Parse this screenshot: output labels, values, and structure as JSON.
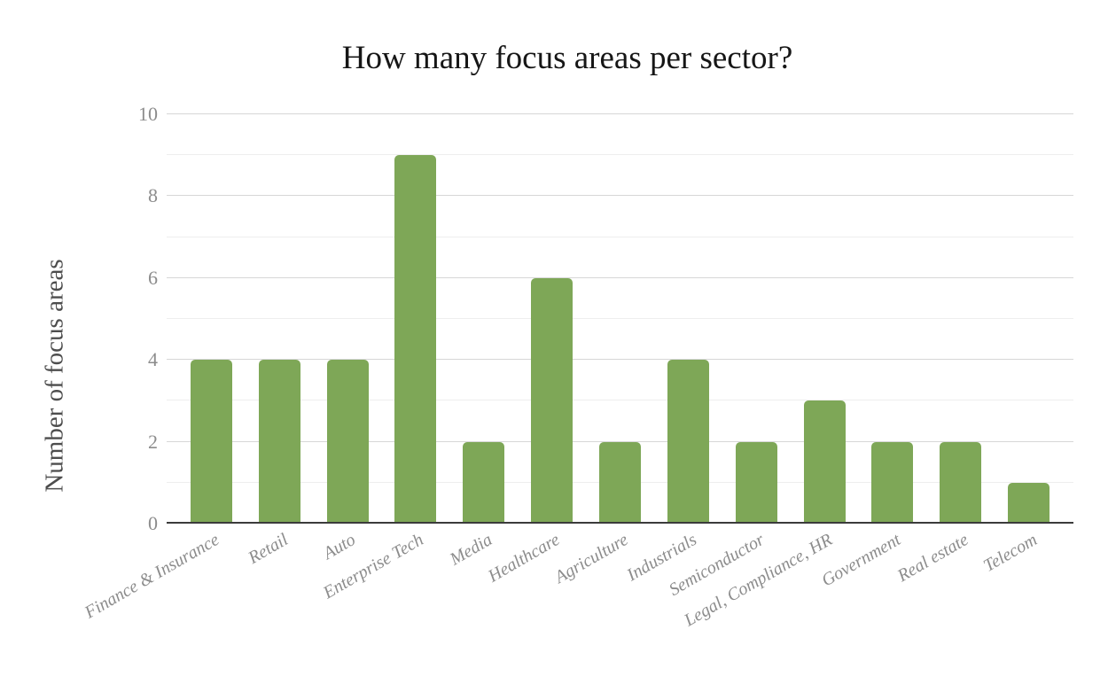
{
  "figure": {
    "title": "How many focus areas per sector?",
    "y_axis_title": "Number of focus areas"
  },
  "colors": {
    "bar_fill": "#7EA757",
    "title_text": "#161616",
    "y_axis_title_text": "#4d4d4d",
    "tick_label_text": "#8c8c8c",
    "gridline_major": "#d7d7d7",
    "gridline_minor": "#eeeeee",
    "axis_baseline": "#3b3b3b",
    "background": "#ffffff"
  },
  "chart_data": {
    "type": "bar",
    "title": "How many focus areas per sector?",
    "xlabel": "",
    "ylabel": "Number of focus areas",
    "categories": [
      "Finance & Insurance",
      "Retail",
      "Auto",
      "Enterprise Tech",
      "Media",
      "Healthcare",
      "Agriculture",
      "Industrials",
      "Semiconductor",
      "Legal, Compliance, HR",
      "Government",
      "Real estate",
      "Telecom"
    ],
    "values": [
      4,
      4,
      4,
      9,
      2,
      6,
      2,
      4,
      2,
      3,
      2,
      2,
      1
    ],
    "ylim": [
      0,
      10
    ],
    "y_ticks": [
      0,
      2,
      4,
      6,
      8,
      10
    ],
    "gridlines": "horizontal every 1 unit, major (darker) every 2 units",
    "legend": "none",
    "bar_orientation": "vertical",
    "x_label_rotation_deg": -30
  }
}
